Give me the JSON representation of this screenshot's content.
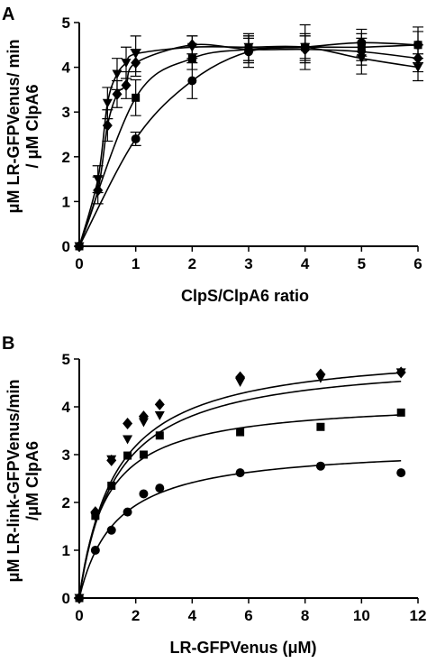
{
  "chart_data": [
    {
      "panel": "A",
      "type": "line",
      "xlabel": "ClpS/ClpA6 ratio",
      "ylabel_line1": "μM LR-GFPVenus/ min",
      "ylabel_line2": "/ μM ClpA6",
      "xlim": [
        0,
        6
      ],
      "ylim": [
        0,
        5
      ],
      "xticks": [
        0,
        1,
        2,
        3,
        4,
        5,
        6
      ],
      "yticks": [
        0,
        1,
        2,
        3,
        4,
        5
      ],
      "series": [
        {
          "marker": "circle",
          "x": [
            0,
            1,
            2,
            3,
            4,
            5,
            6
          ],
          "y": [
            0,
            2.4,
            3.7,
            4.35,
            4.45,
            4.55,
            4.5
          ],
          "yerr": [
            0,
            0.15,
            0.4,
            0.35,
            0.5,
            0.3,
            0.4
          ]
        },
        {
          "marker": "square",
          "x": [
            0,
            1,
            2,
            3,
            4,
            5,
            6
          ],
          "y": [
            0,
            3.32,
            4.2,
            4.4,
            4.45,
            4.45,
            4.5
          ],
          "yerr": [
            0,
            0.4,
            0.25,
            0.3,
            0.25,
            0.3,
            0.3
          ]
        },
        {
          "marker": "diamond",
          "x": [
            0,
            0.33,
            0.5,
            0.67,
            0.83,
            1,
            2,
            3,
            4,
            5,
            6
          ],
          "y": [
            0,
            1.25,
            2.7,
            3.4,
            3.6,
            4.1,
            4.5,
            4.4,
            4.4,
            4.35,
            4.2
          ],
          "yerr": [
            0,
            0.3,
            0.35,
            0.3,
            0.3,
            0.3,
            0.2,
            0.25,
            0.3,
            0.3,
            0.3
          ]
        },
        {
          "marker": "triangle-down",
          "x": [
            0,
            0.33,
            0.5,
            0.67,
            0.83,
            1,
            2,
            3,
            4,
            5,
            6
          ],
          "y": [
            0,
            1.5,
            3.2,
            3.85,
            4.1,
            4.3,
            4.45,
            4.45,
            4.45,
            4.2,
            4.0
          ],
          "yerr": [
            0,
            0.3,
            0.35,
            0.35,
            0.35,
            0.4,
            0.25,
            0.3,
            0.3,
            0.35,
            0.3
          ]
        }
      ]
    },
    {
      "panel": "B",
      "type": "scatter",
      "xlabel": "LR-GFPVenus (μM)",
      "ylabel_line1": "μM LR-link-GFPVenus/min",
      "ylabel_line2": "/μM ClpA6",
      "xlim": [
        0,
        12
      ],
      "ylim": [
        0,
        5
      ],
      "xticks": [
        0,
        2,
        4,
        6,
        8,
        10,
        12
      ],
      "yticks": [
        0,
        1,
        2,
        3,
        4,
        5
      ],
      "series": [
        {
          "marker": "circle",
          "x": [
            0,
            0.57,
            1.14,
            1.71,
            2.28,
            2.85,
            5.7,
            8.55,
            11.4
          ],
          "y": [
            0,
            1.0,
            1.42,
            1.8,
            2.18,
            2.3,
            2.62,
            2.76,
            2.62
          ],
          "fit": {
            "vmax": 3.2,
            "km": 1.3
          }
        },
        {
          "marker": "square",
          "x": [
            0,
            0.57,
            1.14,
            1.71,
            2.28,
            2.85,
            5.7,
            8.55,
            11.4
          ],
          "y": [
            0,
            1.72,
            2.35,
            2.98,
            3.0,
            3.4,
            3.47,
            3.58,
            3.88
          ],
          "fit": {
            "vmax": 4.15,
            "km": 0.95
          }
        },
        {
          "marker": "diamond",
          "x": [
            0,
            0.57,
            1.14,
            1.71,
            2.28,
            2.85,
            5.7,
            8.55,
            11.4
          ],
          "y": [
            0,
            1.8,
            2.88,
            3.65,
            3.8,
            4.05,
            4.62,
            4.68,
            4.72
          ],
          "fit": {
            "vmax": 5.25,
            "km": 1.3
          }
        },
        {
          "marker": "triangle-down",
          "x": [
            0,
            0.57,
            1.14,
            1.71,
            2.28,
            2.85,
            5.7,
            8.55,
            11.4
          ],
          "y": [
            0,
            1.7,
            2.9,
            3.32,
            3.68,
            3.82,
            4.52,
            4.6,
            4.72
          ],
          "fit": {
            "vmax": 5.05,
            "km": 1.3
          }
        }
      ]
    }
  ]
}
